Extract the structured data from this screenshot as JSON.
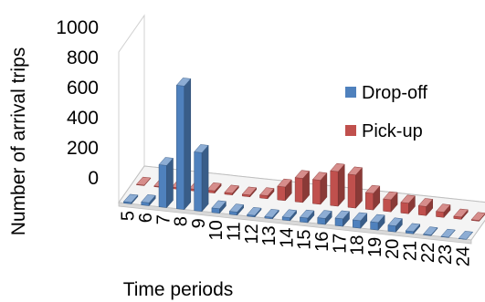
{
  "chart_data": {
    "type": "bar",
    "subtype": "3d-column",
    "title": "",
    "xlabel": "Time periods",
    "ylabel": "Number of arrival trips",
    "ylim": [
      0,
      1000
    ],
    "yticks": [
      "0",
      "200",
      "400",
      "600",
      "800",
      "1000"
    ],
    "grid": false,
    "legend_position": "right",
    "categories": [
      "5",
      "6",
      "7",
      "8",
      "9",
      "10",
      "11",
      "12",
      "13",
      "14",
      "15",
      "16",
      "17",
      "18",
      "19",
      "20",
      "21",
      "22",
      "23",
      "24"
    ],
    "series": [
      {
        "name": "Drop-off",
        "color": "#4F81BD",
        "values": [
          10,
          20,
          280,
          820,
          390,
          30,
          20,
          10,
          10,
          20,
          30,
          40,
          50,
          50,
          50,
          40,
          15,
          5,
          2,
          1
        ]
      },
      {
        "name": "Pick-up",
        "color": "#C0504D",
        "values": [
          3,
          5,
          10,
          12,
          15,
          12,
          12,
          20,
          90,
          160,
          160,
          230,
          220,
          110,
          80,
          70,
          60,
          35,
          15,
          5
        ]
      }
    ]
  }
}
